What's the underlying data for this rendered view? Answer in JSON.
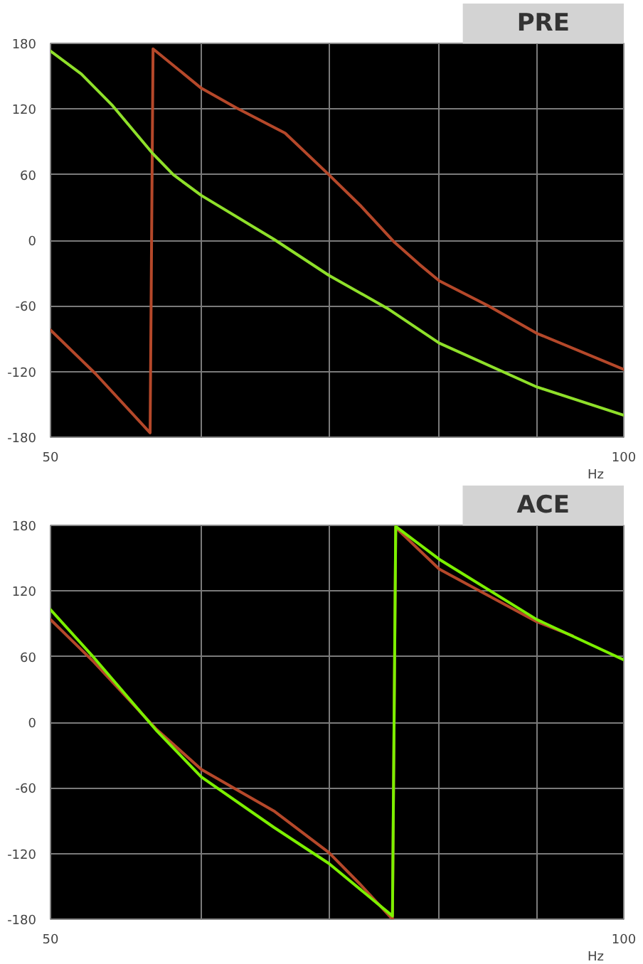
{
  "chart_data": [
    {
      "type": "line",
      "title": "PRE",
      "log": "x",
      "grid": true,
      "xlim": [
        50,
        100
      ],
      "ylim": [
        -180,
        180
      ],
      "xlabel": "Hz",
      "xticks": [
        50,
        {
          "value": 60,
          "label": null
        },
        {
          "value": 70,
          "label": null
        },
        {
          "value": 80,
          "label": null
        },
        {
          "value": 90,
          "label": null
        },
        100
      ],
      "yticks": [
        -180,
        -120,
        -60,
        0,
        60,
        120,
        180
      ],
      "series": [
        {
          "color": "#b5482a",
          "x": [
            50,
            52.8,
            56.4,
            56.6,
            60,
            62.6,
            66.4,
            70,
            72.8,
            75.8,
            78.1,
            80,
            84.9,
            90,
            100
          ],
          "values": [
            -82,
            -122,
            -176,
            175,
            139,
            121,
            98,
            60,
            31,
            -2,
            -22,
            -37,
            -60,
            -85,
            -118
          ]
        },
        {
          "color": "#8fe02a",
          "x": [
            50,
            51.9,
            53.9,
            56.6,
            58,
            60,
            65.5,
            70,
            75.1,
            80,
            90,
            100
          ],
          "values": [
            173,
            152,
            123,
            79,
            60,
            41,
            1,
            -32,
            -62,
            -94,
            -134,
            -160
          ]
        }
      ]
    },
    {
      "type": "line",
      "title": "ACE",
      "log": "x",
      "grid": true,
      "xlim": [
        50,
        100
      ],
      "ylim": [
        -180,
        180
      ],
      "xlabel": "Hz",
      "xticks": [
        50,
        {
          "value": 60,
          "label": null
        },
        {
          "value": 70,
          "label": null
        },
        {
          "value": 80,
          "label": null
        },
        {
          "value": 90,
          "label": null
        },
        100
      ],
      "yticks": [
        -180,
        -120,
        -60,
        0,
        60,
        120,
        180
      ],
      "series": [
        {
          "color": "#b5482a",
          "x": [
            50,
            52.7,
            56.8,
            60,
            65.5,
            70,
            72.7,
            75.6,
            75.9,
            80,
            90,
            94
          ],
          "values": [
            94,
            55,
            -6,
            -43,
            -81,
            -119,
            -148,
            -180,
            178,
            140,
            92,
            79
          ]
        },
        {
          "color": "#7cf000",
          "x": [
            50,
            52.7,
            56.8,
            60,
            65.5,
            70,
            75.6,
            75.9,
            80,
            90,
            100
          ],
          "values": [
            103,
            59,
            -7,
            -50,
            -96,
            -129,
            -177,
            179,
            149,
            94,
            57
          ]
        }
      ]
    }
  ]
}
